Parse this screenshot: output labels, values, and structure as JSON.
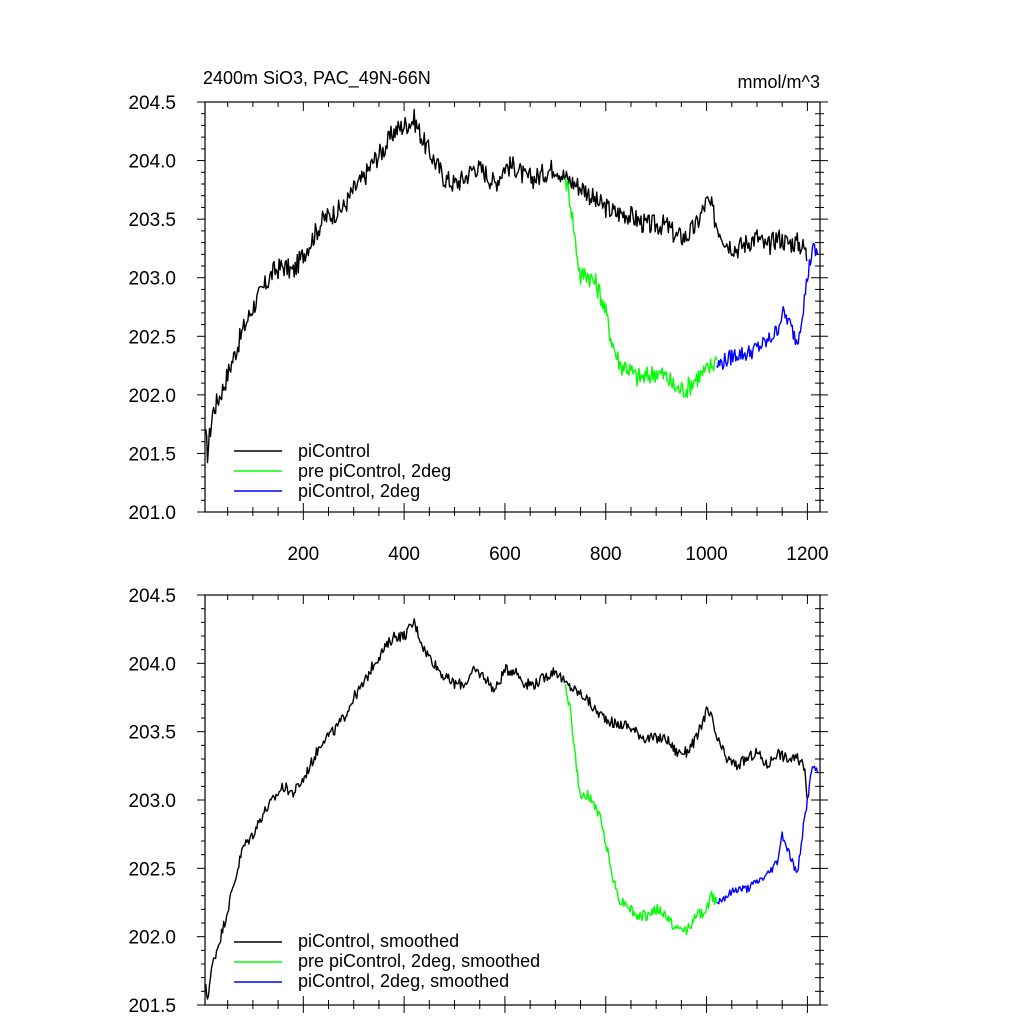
{
  "chart_data": [
    {
      "type": "line",
      "title_left": "2400m SiO3, PAC_49N-66N",
      "title_right": "mmol/m^3",
      "xlim": [
        5,
        1225
      ],
      "ylim": [
        201.0,
        204.5
      ],
      "x_ticks": [
        200,
        400,
        600,
        800,
        1000,
        1200
      ],
      "x_tick_labels": [
        "200",
        "400",
        "600",
        "800",
        "1000",
        "1200"
      ],
      "y_ticks": [
        201.0,
        201.5,
        202.0,
        202.5,
        203.0,
        203.5,
        204.0,
        204.5
      ],
      "y_tick_labels": [
        "201.0",
        "201.5",
        "202.0",
        "202.5",
        "203.0",
        "203.5",
        "204.0",
        "204.5"
      ],
      "legend": [
        "piControl",
        "pre piControl, 2deg",
        "piControl, 2deg"
      ],
      "legend_position": "bottom-left",
      "series": [
        {
          "name": "piControl",
          "color": "#000000",
          "noise": 0.09,
          "x": [
            5,
            10,
            20,
            40,
            60,
            80,
            100,
            120,
            140,
            160,
            180,
            200,
            220,
            240,
            260,
            280,
            300,
            320,
            340,
            360,
            380,
            400,
            420,
            440,
            460,
            480,
            500,
            520,
            540,
            560,
            580,
            600,
            620,
            640,
            660,
            680,
            700,
            720,
            740,
            760,
            780,
            800,
            820,
            840,
            860,
            880,
            900,
            920,
            940,
            960,
            980,
            1000,
            1010,
            1020,
            1040,
            1060,
            1080,
            1100,
            1120,
            1140,
            1160,
            1180,
            1195,
            1200
          ],
          "y": [
            201.7,
            201.5,
            201.85,
            202.05,
            202.3,
            202.55,
            202.75,
            202.9,
            203.05,
            203.1,
            203.05,
            203.2,
            203.35,
            203.5,
            203.55,
            203.6,
            203.75,
            203.85,
            204.0,
            204.1,
            204.25,
            204.3,
            204.35,
            204.15,
            204.0,
            203.85,
            203.8,
            203.85,
            203.95,
            203.9,
            203.8,
            203.95,
            203.95,
            203.85,
            203.85,
            203.9,
            203.95,
            203.85,
            203.8,
            203.75,
            203.65,
            203.6,
            203.55,
            203.55,
            203.5,
            203.45,
            203.45,
            203.45,
            203.35,
            203.35,
            203.45,
            203.65,
            203.6,
            203.45,
            203.3,
            203.25,
            203.3,
            203.35,
            203.25,
            203.35,
            203.3,
            203.3,
            203.25,
            203.15
          ]
        },
        {
          "name": "pre piControl, 2deg",
          "color": "#00ff00",
          "noise": 0.09,
          "x": [
            720,
            730,
            740,
            750,
            760,
            770,
            780,
            790,
            800,
            810,
            820,
            830,
            840,
            850,
            860,
            880,
            900,
            920,
            940,
            960,
            980,
            1000,
            1010,
            1020
          ],
          "y": [
            203.85,
            203.65,
            203.3,
            203.0,
            203.05,
            203.0,
            202.95,
            202.85,
            202.7,
            202.5,
            202.35,
            202.25,
            202.25,
            202.2,
            202.15,
            202.15,
            202.2,
            202.15,
            202.05,
            202.05,
            202.15,
            202.2,
            202.25,
            202.3
          ]
        },
        {
          "name": "piControl, 2deg",
          "color": "#0000ff",
          "noise": 0.07,
          "x": [
            1020,
            1040,
            1060,
            1080,
            1100,
            1120,
            1140,
            1150,
            1160,
            1170,
            1180,
            1190,
            1200,
            1210,
            1220
          ],
          "y": [
            202.25,
            202.3,
            202.35,
            202.35,
            202.4,
            202.45,
            202.55,
            202.7,
            202.65,
            202.55,
            202.45,
            202.7,
            203.0,
            203.25,
            203.2
          ]
        }
      ]
    },
    {
      "type": "line",
      "xlim": [
        5,
        1225
      ],
      "ylim": [
        201.5,
        204.5
      ],
      "x_ticks": [
        200,
        400,
        600,
        800,
        1000,
        1200
      ],
      "y_ticks": [
        201.5,
        202.0,
        202.5,
        203.0,
        203.5,
        204.0,
        204.5
      ],
      "y_tick_labels": [
        "201.5",
        "202.0",
        "202.5",
        "203.0",
        "203.5",
        "204.0",
        "204.5"
      ],
      "legend": [
        "piControl, smoothed",
        "pre piControl, 2deg, smoothed",
        "piControl, 2deg, smoothed"
      ],
      "legend_position": "bottom-left",
      "series": [
        {
          "name": "piControl, smoothed",
          "color": "#000000",
          "noise": 0.04,
          "x": [
            5,
            10,
            20,
            40,
            60,
            80,
            100,
            120,
            140,
            160,
            180,
            200,
            220,
            240,
            260,
            280,
            300,
            320,
            340,
            360,
            380,
            400,
            420,
            440,
            460,
            480,
            500,
            520,
            540,
            560,
            580,
            600,
            620,
            640,
            660,
            680,
            700,
            720,
            740,
            760,
            780,
            800,
            820,
            840,
            860,
            880,
            900,
            920,
            940,
            960,
            980,
            1000,
            1010,
            1020,
            1040,
            1060,
            1080,
            1100,
            1120,
            1140,
            1160,
            1180,
            1195,
            1200
          ],
          "y": [
            201.65,
            201.55,
            201.8,
            202.05,
            202.35,
            202.65,
            202.75,
            202.9,
            203.0,
            203.1,
            203.05,
            203.15,
            203.3,
            203.45,
            203.5,
            203.6,
            203.75,
            203.85,
            204.0,
            204.1,
            204.2,
            204.2,
            204.3,
            204.1,
            204.0,
            203.9,
            203.85,
            203.85,
            203.95,
            203.9,
            203.8,
            203.95,
            203.95,
            203.85,
            203.85,
            203.9,
            203.95,
            203.85,
            203.8,
            203.75,
            203.65,
            203.6,
            203.55,
            203.55,
            203.5,
            203.45,
            203.45,
            203.45,
            203.35,
            203.35,
            203.45,
            203.65,
            203.6,
            203.45,
            203.3,
            203.25,
            203.3,
            203.35,
            203.25,
            203.35,
            203.3,
            203.3,
            203.25,
            203.0
          ]
        },
        {
          "name": "pre piControl, 2deg, smoothed",
          "color": "#00ff00",
          "noise": 0.04,
          "x": [
            720,
            730,
            740,
            750,
            760,
            770,
            780,
            790,
            800,
            810,
            820,
            830,
            840,
            850,
            860,
            880,
            900,
            920,
            940,
            960,
            980,
            1000,
            1010,
            1020
          ],
          "y": [
            203.85,
            203.65,
            203.3,
            203.0,
            203.05,
            203.0,
            202.95,
            202.85,
            202.7,
            202.5,
            202.35,
            202.25,
            202.25,
            202.2,
            202.15,
            202.15,
            202.2,
            202.15,
            202.05,
            202.05,
            202.15,
            202.2,
            202.3,
            202.25
          ]
        },
        {
          "name": "piControl, 2deg, smoothed",
          "color": "#0000ff",
          "noise": 0.03,
          "x": [
            1020,
            1040,
            1060,
            1080,
            1100,
            1120,
            1140,
            1150,
            1160,
            1170,
            1180,
            1190,
            1200,
            1210,
            1220
          ],
          "y": [
            202.25,
            202.3,
            202.35,
            202.35,
            202.4,
            202.45,
            202.55,
            202.75,
            202.65,
            202.55,
            202.45,
            202.75,
            203.0,
            203.25,
            203.2
          ]
        }
      ]
    }
  ]
}
